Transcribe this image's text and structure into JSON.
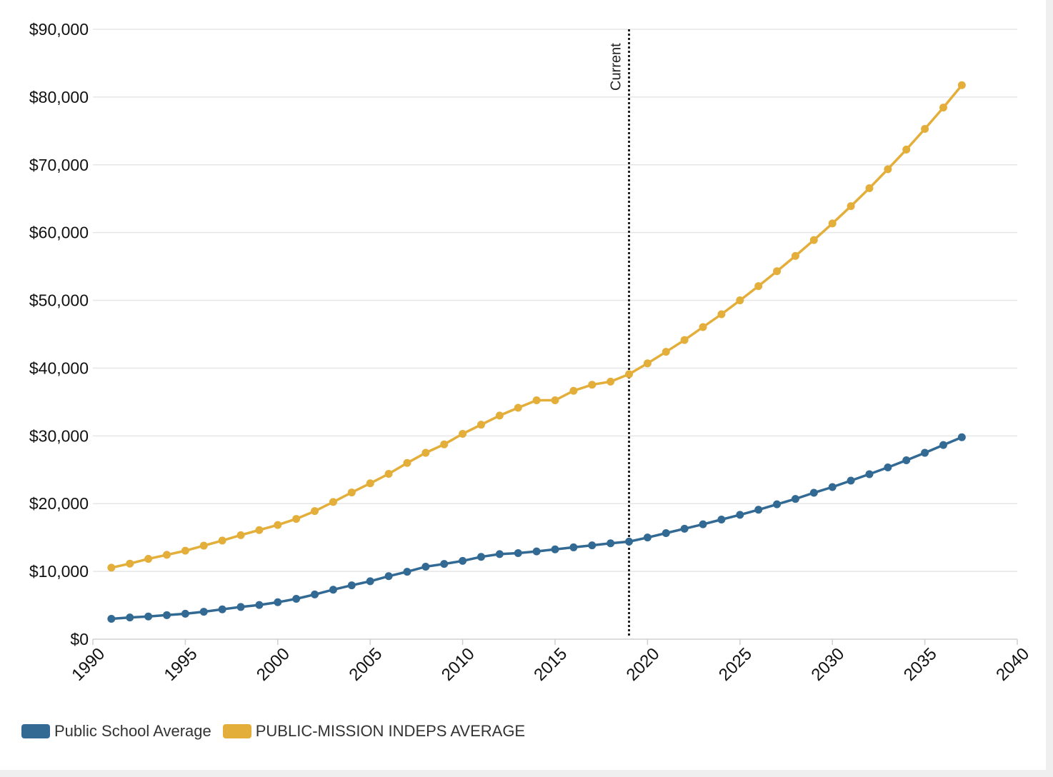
{
  "chart_data": {
    "type": "line",
    "title": "",
    "xlabel": "",
    "ylabel": "",
    "xlim": [
      1990,
      2040
    ],
    "ylim": [
      0,
      90000
    ],
    "x_ticks": [
      1990,
      1995,
      2000,
      2005,
      2010,
      2015,
      2020,
      2025,
      2030,
      2035,
      2040
    ],
    "x_tick_labels": [
      "1990",
      "1995",
      "2000",
      "2005",
      "2010",
      "2015",
      "2020",
      "2025",
      "2030",
      "2035",
      "2040"
    ],
    "y_ticks": [
      0,
      10000,
      20000,
      30000,
      40000,
      50000,
      60000,
      70000,
      80000,
      90000
    ],
    "y_tick_labels": [
      "$0",
      "$10,000",
      "$20,000",
      "$30,000",
      "$40,000",
      "$50,000",
      "$60,000",
      "$70,000",
      "$80,000",
      "$90,000"
    ],
    "grid": true,
    "legend_position": "bottom-left",
    "x": [
      1991,
      1992,
      1993,
      1994,
      1995,
      1996,
      1997,
      1998,
      1999,
      2000,
      2001,
      2002,
      2003,
      2004,
      2005,
      2006,
      2007,
      2008,
      2009,
      2010,
      2011,
      2012,
      2013,
      2014,
      2015,
      2016,
      2017,
      2018,
      2019,
      2020,
      2021,
      2022,
      2023,
      2024,
      2025,
      2026,
      2027,
      2028,
      2029,
      2030,
      2031,
      2032,
      2033,
      2034,
      2035,
      2036,
      2037
    ],
    "series": [
      {
        "name": "Public School Average",
        "color": "#336a94",
        "values": [
          3000,
          3200,
          3350,
          3550,
          3750,
          4050,
          4400,
          4750,
          5050,
          5450,
          5950,
          6600,
          7300,
          7950,
          8550,
          9300,
          9950,
          10700,
          11100,
          11550,
          12150,
          12550,
          12700,
          12950,
          13250,
          13550,
          13850,
          14150,
          14400,
          15000,
          15650,
          16300,
          16950,
          17650,
          18350,
          19100,
          19900,
          20700,
          21600,
          22450,
          23400,
          24350,
          25350,
          26400,
          27500,
          28650,
          29800
        ]
      },
      {
        "name": "PUBLIC-MISSION INDEPS AVERAGE",
        "color": "#e3ae3a",
        "values": [
          10550,
          11150,
          11850,
          12450,
          13050,
          13800,
          14550,
          15350,
          16100,
          16850,
          17750,
          18900,
          20250,
          21650,
          23000,
          24400,
          26000,
          27500,
          28750,
          30300,
          31650,
          33000,
          34150,
          35250,
          35250,
          36650,
          37550,
          38000,
          39100,
          40700,
          42400,
          44150,
          46050,
          47950,
          50000,
          52100,
          54300,
          56550,
          58900,
          61350,
          63900,
          66550,
          69350,
          72250,
          75300,
          78450,
          81750
        ]
      }
    ],
    "annotations": [
      {
        "label": "Current",
        "x": 2019
      }
    ]
  }
}
